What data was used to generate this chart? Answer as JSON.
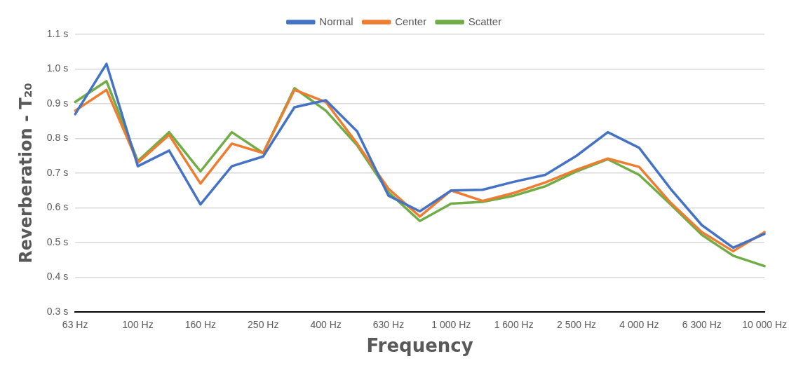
{
  "chart_data": {
    "type": "line",
    "xlabel": "Frequency",
    "ylabel": "Reverberation - T₂₀",
    "categories": [
      "63 Hz",
      null,
      "100 Hz",
      null,
      "160 Hz",
      null,
      "250 Hz",
      null,
      "400 Hz",
      null,
      "630 Hz",
      null,
      "1 000 Hz",
      null,
      "1 600 Hz",
      null,
      "2 500 Hz",
      null,
      "4 000 Hz",
      null,
      "6 300 Hz",
      null,
      "10 000 Hz"
    ],
    "series": [
      {
        "name": "Normal",
        "color": "#4472c4",
        "values": [
          0.87,
          1.015,
          0.72,
          0.765,
          0.61,
          0.72,
          0.748,
          0.89,
          0.91,
          0.82,
          0.635,
          0.59,
          0.65,
          0.652,
          0.675,
          0.695,
          0.75,
          0.818,
          0.773,
          0.655,
          0.55,
          0.485,
          0.525
        ]
      },
      {
        "name": "Center",
        "color": "#ed7d31",
        "values": [
          0.88,
          0.94,
          0.73,
          0.81,
          0.67,
          0.785,
          0.758,
          0.94,
          0.905,
          0.785,
          0.655,
          0.575,
          0.65,
          0.62,
          0.643,
          0.673,
          0.71,
          0.742,
          0.718,
          0.615,
          0.53,
          0.475,
          0.53
        ]
      },
      {
        "name": "Scatter",
        "color": "#70ad47",
        "values": [
          0.905,
          0.965,
          0.735,
          0.818,
          0.705,
          0.818,
          0.758,
          0.945,
          0.88,
          0.78,
          0.645,
          0.562,
          0.612,
          0.617,
          0.635,
          0.662,
          0.705,
          0.74,
          0.695,
          0.61,
          0.522,
          0.462,
          0.432
        ]
      }
    ],
    "ylim": [
      0.3,
      1.1
    ],
    "yticks": [
      {
        "value": 0.3,
        "label": "0.3 s"
      },
      {
        "value": 0.4,
        "label": "0.4 s"
      },
      {
        "value": 0.5,
        "label": "0.5 s"
      },
      {
        "value": 0.6,
        "label": "0.6 s"
      },
      {
        "value": 0.7,
        "label": "0.7 s"
      },
      {
        "value": 0.8,
        "label": "0.8 s"
      },
      {
        "value": 0.9,
        "label": "0.9 s"
      },
      {
        "value": 1.0,
        "label": "1.0 s"
      },
      {
        "value": 1.1,
        "label": "1.1 s"
      }
    ],
    "grid": "y",
    "legend": "top",
    "marker": "none",
    "line_style": "solid"
  }
}
